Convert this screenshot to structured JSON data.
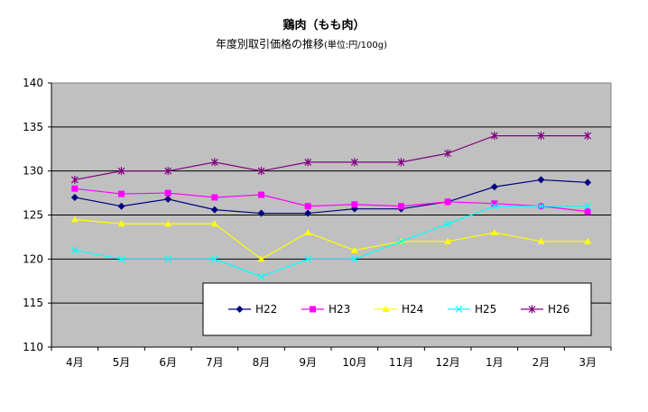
{
  "chart_data": {
    "type": "line",
    "title": "鶏肉（もも肉）",
    "subtitle": "年度別取引価格の推移",
    "subtitle_unit": "(単位:円/100g)",
    "categories": [
      "4月",
      "5月",
      "6月",
      "7月",
      "8月",
      "9月",
      "10月",
      "11月",
      "12月",
      "1月",
      "2月",
      "3月"
    ],
    "ylim": [
      110,
      140
    ],
    "yticks": [
      110,
      115,
      120,
      125,
      130,
      135,
      140
    ],
    "grid": "horizontal",
    "legend_position": "bottom-right inside plot",
    "plot_background": "#c0c0c0",
    "series": [
      {
        "name": "H22",
        "color": "#000080",
        "marker": "diamond",
        "values": [
          127,
          126,
          126.8,
          125.6,
          125.2,
          125.2,
          125.7,
          125.7,
          126.5,
          128.2,
          129,
          128.7
        ]
      },
      {
        "name": "H23",
        "color": "#ff00ff",
        "marker": "square",
        "values": [
          128,
          127.4,
          127.5,
          127,
          127.3,
          126,
          126.2,
          126,
          126.5,
          126.3,
          126,
          125.4
        ]
      },
      {
        "name": "H24",
        "color": "#ffff00",
        "marker": "triangle",
        "values": [
          124.5,
          124,
          124,
          124,
          120,
          123,
          121,
          122,
          122,
          123,
          122,
          122
        ]
      },
      {
        "name": "H25",
        "color": "#00ffff",
        "marker": "x",
        "values": [
          121,
          120,
          120,
          120,
          118,
          120,
          120,
          122,
          124,
          126,
          126,
          126
        ]
      },
      {
        "name": "H26",
        "color": "#800080",
        "marker": "star",
        "values": [
          129,
          130,
          130,
          131,
          130,
          131,
          131,
          131,
          132,
          134,
          134,
          134
        ]
      }
    ]
  }
}
